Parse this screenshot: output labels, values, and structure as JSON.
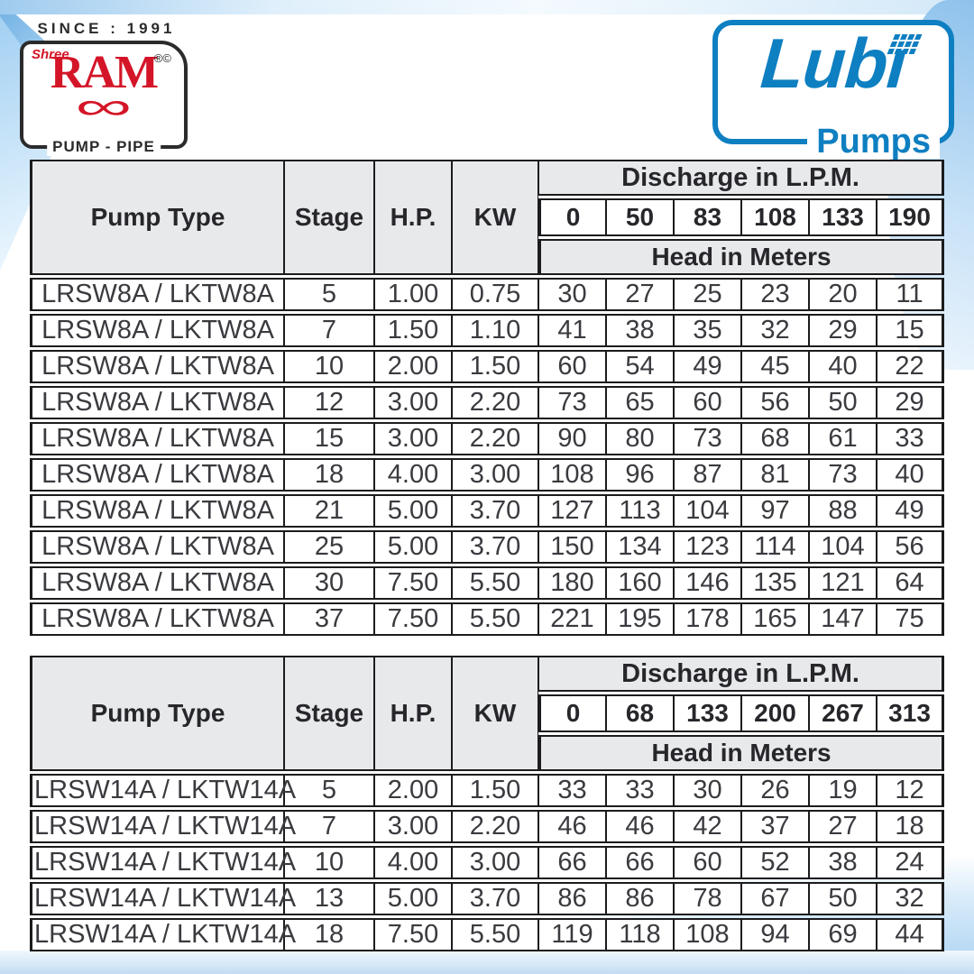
{
  "brand_left": {
    "since": "SINCE : 1991",
    "shree": "Shree",
    "name": "RAM",
    "marks": "®©",
    "swirl": "∞",
    "tagline": "PUMP - PIPE",
    "red": "#d41527"
  },
  "brand_right": {
    "name": "Lubı",
    "sub": "Pumps",
    "blue": "#0e7fc1"
  },
  "tables": [
    {
      "headers": {
        "pump_type": "Pump Type",
        "stage": "Stage",
        "hp": "H.P.",
        "kw": "KW",
        "discharge": "Discharge in L.P.M.",
        "head": "Head in Meters"
      },
      "discharge_values": [
        "0",
        "50",
        "83",
        "108",
        "133",
        "190"
      ],
      "rows": [
        {
          "pump_type": "LRSW8A / LKTW8A",
          "stage": "5",
          "hp": "1.00",
          "kw": "0.75",
          "heads": [
            "30",
            "27",
            "25",
            "23",
            "20",
            "11"
          ]
        },
        {
          "pump_type": "LRSW8A / LKTW8A",
          "stage": "7",
          "hp": "1.50",
          "kw": "1.10",
          "heads": [
            "41",
            "38",
            "35",
            "32",
            "29",
            "15"
          ]
        },
        {
          "pump_type": "LRSW8A / LKTW8A",
          "stage": "10",
          "hp": "2.00",
          "kw": "1.50",
          "heads": [
            "60",
            "54",
            "49",
            "45",
            "40",
            "22"
          ]
        },
        {
          "pump_type": "LRSW8A / LKTW8A",
          "stage": "12",
          "hp": "3.00",
          "kw": "2.20",
          "heads": [
            "73",
            "65",
            "60",
            "56",
            "50",
            "29"
          ]
        },
        {
          "pump_type": "LRSW8A / LKTW8A",
          "stage": "15",
          "hp": "3.00",
          "kw": "2.20",
          "heads": [
            "90",
            "80",
            "73",
            "68",
            "61",
            "33"
          ]
        },
        {
          "pump_type": "LRSW8A / LKTW8A",
          "stage": "18",
          "hp": "4.00",
          "kw": "3.00",
          "heads": [
            "108",
            "96",
            "87",
            "81",
            "73",
            "40"
          ]
        },
        {
          "pump_type": "LRSW8A / LKTW8A",
          "stage": "21",
          "hp": "5.00",
          "kw": "3.70",
          "heads": [
            "127",
            "113",
            "104",
            "97",
            "88",
            "49"
          ]
        },
        {
          "pump_type": "LRSW8A / LKTW8A",
          "stage": "25",
          "hp": "5.00",
          "kw": "3.70",
          "heads": [
            "150",
            "134",
            "123",
            "114",
            "104",
            "56"
          ]
        },
        {
          "pump_type": "LRSW8A / LKTW8A",
          "stage": "30",
          "hp": "7.50",
          "kw": "5.50",
          "heads": [
            "180",
            "160",
            "146",
            "135",
            "121",
            "64"
          ]
        },
        {
          "pump_type": "LRSW8A / LKTW8A",
          "stage": "37",
          "hp": "7.50",
          "kw": "5.50",
          "heads": [
            "221",
            "195",
            "178",
            "165",
            "147",
            "75"
          ]
        }
      ]
    },
    {
      "headers": {
        "pump_type": "Pump Type",
        "stage": "Stage",
        "hp": "H.P.",
        "kw": "KW",
        "discharge": "Discharge in L.P.M.",
        "head": "Head in Meters"
      },
      "discharge_values": [
        "0",
        "68",
        "133",
        "200",
        "267",
        "313"
      ],
      "rows": [
        {
          "pump_type": "LRSW14A / LKTW14A",
          "stage": "5",
          "hp": "2.00",
          "kw": "1.50",
          "heads": [
            "33",
            "33",
            "30",
            "26",
            "19",
            "12"
          ]
        },
        {
          "pump_type": "LRSW14A / LKTW14A",
          "stage": "7",
          "hp": "3.00",
          "kw": "2.20",
          "heads": [
            "46",
            "46",
            "42",
            "37",
            "27",
            "18"
          ]
        },
        {
          "pump_type": "LRSW14A / LKTW14A",
          "stage": "10",
          "hp": "4.00",
          "kw": "3.00",
          "heads": [
            "66",
            "66",
            "60",
            "52",
            "38",
            "24"
          ]
        },
        {
          "pump_type": "LRSW14A / LKTW14A",
          "stage": "13",
          "hp": "5.00",
          "kw": "3.70",
          "heads": [
            "86",
            "86",
            "78",
            "67",
            "50",
            "32"
          ]
        },
        {
          "pump_type": "LRSW14A / LKTW14A",
          "stage": "18",
          "hp": "7.50",
          "kw": "5.50",
          "heads": [
            "119",
            "118",
            "108",
            "94",
            "69",
            "44"
          ]
        }
      ]
    }
  ]
}
